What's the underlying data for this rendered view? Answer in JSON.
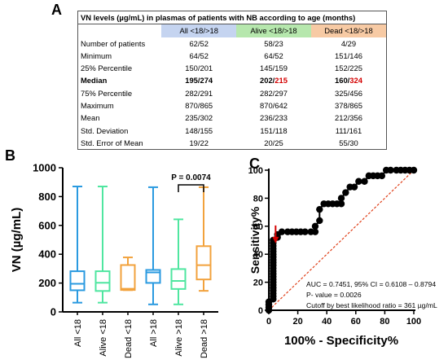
{
  "panel_labels": {
    "a": "A",
    "b": "B",
    "c": "C"
  },
  "table": {
    "title": "VN levels (µg/mL)  in plasmas of patients with NB according to age (months)",
    "col_headers": [
      "All <18/>18",
      "Alive <18/>18",
      "Dead <18/>18"
    ],
    "col_colors": [
      "#c5d4f0",
      "#b6e7ad",
      "#f7caa4"
    ],
    "rows": [
      {
        "label": "Number of patients",
        "values": [
          "62/52",
          "58/23",
          "4/29"
        ]
      },
      {
        "label": "Minimum",
        "values": [
          "64/52",
          "64/52",
          "151/146"
        ]
      },
      {
        "label": "25% Percentile",
        "values": [
          "150/201",
          "145/159",
          "152/225"
        ]
      },
      {
        "label": "Median",
        "values": [
          "195/274",
          "202/215",
          "160/324"
        ],
        "bold": true,
        "red_parts": [
          "",
          "215",
          "324"
        ]
      },
      {
        "label": "75% Percentile",
        "values": [
          "282/291",
          "282/297",
          "325/456"
        ]
      },
      {
        "label": "Maximum",
        "values": [
          "870/865",
          "870/642",
          "378/865"
        ]
      },
      {
        "label": "Mean",
        "values": [
          "235/302",
          "236/233",
          "212/356"
        ]
      },
      {
        "label": "Std. Deviation",
        "values": [
          "148/155",
          "151/118",
          "111/161"
        ]
      },
      {
        "label": "Std. Error of Mean",
        "values": [
          "19/22",
          "20/25",
          "55/30"
        ]
      }
    ]
  },
  "chart_data": [
    {
      "type": "box",
      "ylabel": "VN (µg/mL)",
      "ylim": [
        0,
        1000
      ],
      "yticks": [
        0,
        200,
        400,
        600,
        800,
        1000
      ],
      "categories": [
        "All <18",
        "Alive <18",
        "Dead <18",
        "All >18",
        "Alive >18",
        "Dead >18"
      ],
      "colors": [
        "#2a9ae0",
        "#4fe6a0",
        "#f2a23c",
        "#2a9ae0",
        "#4fe6a0",
        "#f2a23c"
      ],
      "boxes": [
        {
          "min": 64,
          "q1": 150,
          "median": 195,
          "q3": 282,
          "max": 870
        },
        {
          "min": 64,
          "q1": 145,
          "median": 202,
          "q3": 282,
          "max": 870
        },
        {
          "min": 151,
          "q1": 152,
          "median": 160,
          "q3": 325,
          "max": 378
        },
        {
          "min": 52,
          "q1": 201,
          "median": 274,
          "q3": 291,
          "max": 865
        },
        {
          "min": 52,
          "q1": 159,
          "median": 215,
          "q3": 297,
          "max": 642
        },
        {
          "min": 146,
          "q1": 225,
          "median": 324,
          "q3": 456,
          "max": 865
        }
      ],
      "annotation": {
        "text": "P = 0.0074",
        "between": [
          4,
          5
        ]
      }
    },
    {
      "type": "line",
      "xlabel": "100% - Specificity%",
      "ylabel": "Sensitivity%",
      "xlim": [
        0,
        100
      ],
      "ylim": [
        0,
        100
      ],
      "xticks": [
        0,
        20,
        40,
        60,
        80,
        100
      ],
      "yticks": [
        0,
        20,
        40,
        60,
        80,
        100
      ],
      "series": [
        {
          "x": [
            0,
            0,
            0,
            0,
            3,
            3,
            3,
            3,
            3,
            3,
            3,
            3,
            3,
            3,
            3,
            3,
            3,
            3,
            3,
            3,
            3,
            3,
            3,
            3,
            3,
            3,
            6,
            6,
            9,
            13,
            16,
            19,
            22,
            25,
            29,
            32,
            32,
            35,
            35,
            38,
            41,
            44,
            47,
            50,
            50,
            53,
            56,
            59,
            62,
            66,
            69,
            72,
            75,
            78,
            81,
            84,
            88,
            91,
            94,
            97,
            100
          ],
          "y": [
            0,
            2,
            4,
            6,
            8,
            10,
            12,
            14,
            16,
            18,
            20,
            22,
            24,
            26,
            28,
            30,
            32,
            34,
            36,
            38,
            40,
            42,
            44,
            46,
            48,
            50,
            52,
            54,
            56,
            56,
            56,
            56,
            56,
            56,
            56,
            56,
            60,
            64,
            72,
            76,
            76,
            76,
            76,
            76,
            80,
            84,
            88,
            88,
            92,
            92,
            96,
            96,
            96,
            96,
            100,
            100,
            100,
            100,
            100,
            100,
            100
          ]
        }
      ],
      "reference_line": [
        [
          0,
          0
        ],
        [
          100,
          100
        ]
      ],
      "arrow_at": [
        3,
        46
      ],
      "annotation_lines": [
        "AUC = 0.7451,   95% CI = 0.6108 – 0.8794",
        "P- value = 0.0026",
        "Cutoff by best likelihood ratio = 361 µg/mL"
      ]
    }
  ]
}
